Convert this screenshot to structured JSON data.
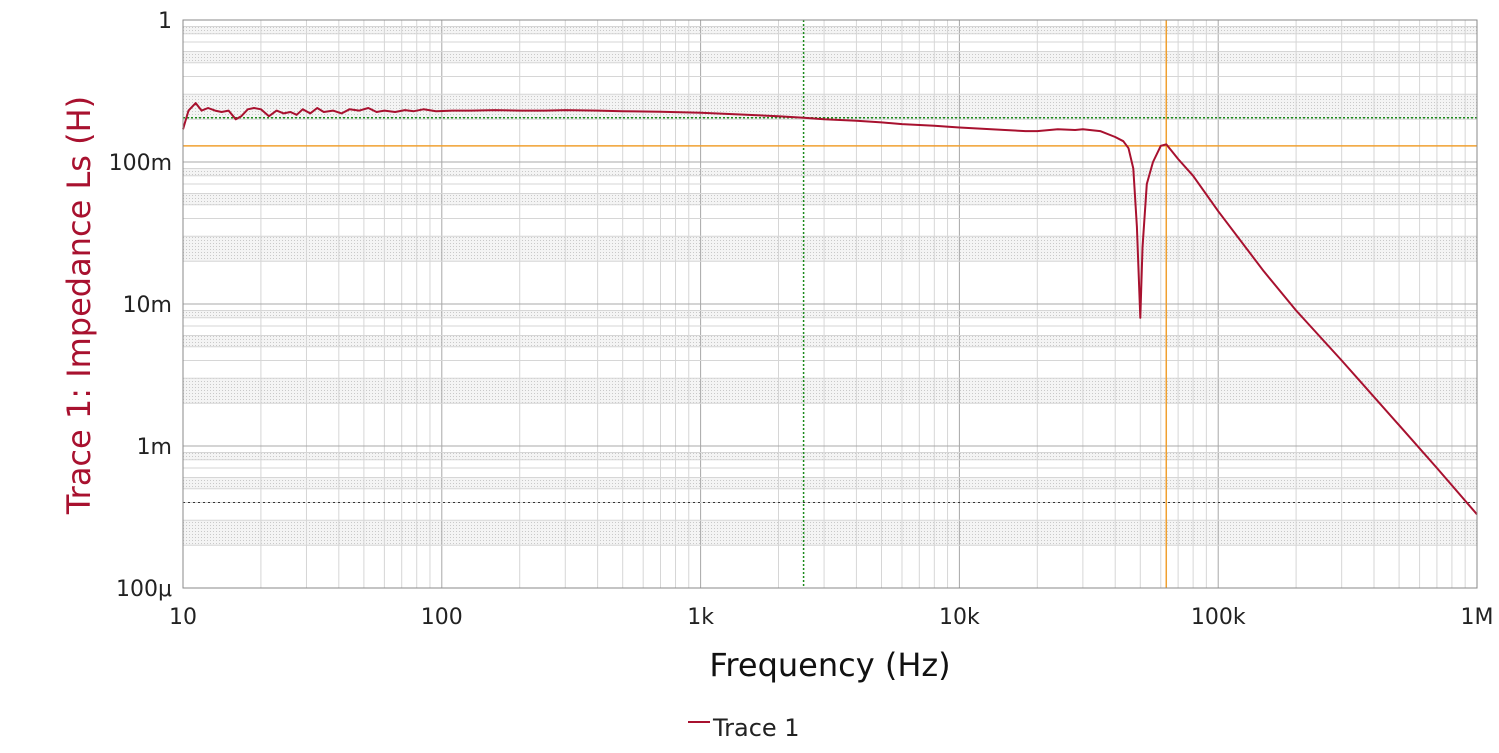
{
  "chart_data": {
    "type": "line",
    "title": "",
    "xlabel": "Frequency (Hz)",
    "ylabel": "Trace 1: Impedance Ls (H)",
    "x_scale": "log",
    "y_scale": "log",
    "xlim": [
      10,
      1000000
    ],
    "ylim": [
      0.0001,
      1
    ],
    "x_ticks": [
      {
        "value": 10,
        "label": "10"
      },
      {
        "value": 100,
        "label": "100"
      },
      {
        "value": 1000,
        "label": "1k"
      },
      {
        "value": 10000,
        "label": "10k"
      },
      {
        "value": 100000,
        "label": "100k"
      },
      {
        "value": 1000000,
        "label": "1M"
      }
    ],
    "y_ticks": [
      {
        "value": 1,
        "label": "1"
      },
      {
        "value": 0.1,
        "label": "100m"
      },
      {
        "value": 0.01,
        "label": "10m"
      },
      {
        "value": 0.001,
        "label": "1m"
      },
      {
        "value": 0.0001,
        "label": "100μ"
      }
    ],
    "grid": true,
    "legend_position": "bottom-center",
    "series": [
      {
        "name": "Trace 1",
        "color": "#a8112f",
        "x": [
          10,
          10.5,
          11.2,
          11.8,
          12.5,
          13.3,
          14.1,
          15,
          16,
          16.8,
          17.8,
          18.8,
          20,
          21.5,
          23,
          24.5,
          26,
          27.5,
          29,
          31,
          33,
          35,
          38,
          41,
          44,
          48,
          52,
          56,
          60,
          66,
          72,
          78,
          85,
          95,
          110,
          130,
          160,
          200,
          250,
          300,
          400,
          500,
          700,
          1000,
          1500,
          2000,
          2500,
          3000,
          4000,
          5000,
          6000,
          8000,
          10000,
          12000,
          15000,
          18000,
          20000,
          24000,
          28000,
          30000,
          35000,
          40000,
          43000,
          45000,
          47000,
          48500,
          50000,
          51000,
          53000,
          56000,
          60000,
          63000,
          66000,
          70000,
          80000,
          100000,
          150000,
          200000,
          300000,
          500000,
          700000,
          1000000
        ],
        "y": [
          0.17,
          0.23,
          0.26,
          0.23,
          0.24,
          0.23,
          0.225,
          0.23,
          0.2,
          0.21,
          0.235,
          0.24,
          0.235,
          0.21,
          0.23,
          0.22,
          0.225,
          0.215,
          0.235,
          0.22,
          0.24,
          0.225,
          0.23,
          0.22,
          0.235,
          0.23,
          0.24,
          0.225,
          0.23,
          0.225,
          0.232,
          0.228,
          0.235,
          0.228,
          0.23,
          0.23,
          0.232,
          0.23,
          0.23,
          0.232,
          0.23,
          0.228,
          0.226,
          0.222,
          0.215,
          0.21,
          0.205,
          0.2,
          0.195,
          0.19,
          0.185,
          0.18,
          0.175,
          0.172,
          0.168,
          0.165,
          0.165,
          0.17,
          0.168,
          0.17,
          0.165,
          0.15,
          0.14,
          0.125,
          0.09,
          0.035,
          0.008,
          0.025,
          0.07,
          0.1,
          0.13,
          0.133,
          0.12,
          0.105,
          0.08,
          0.045,
          0.017,
          0.009,
          0.004,
          0.0014,
          0.0007,
          0.00033
        ]
      }
    ],
    "cursors": [
      {
        "axis": "x",
        "value": 2500,
        "color": "#1a8a1a",
        "style": "dotted"
      },
      {
        "axis": "y",
        "value": 0.205,
        "color": "#1a8a1a",
        "style": "dotted"
      },
      {
        "axis": "x",
        "value": 63000,
        "color": "#f0a030",
        "style": "solid"
      },
      {
        "axis": "y",
        "value": 0.13,
        "color": "#f0a030",
        "style": "solid"
      }
    ],
    "reference_lines": [
      {
        "axis": "y",
        "value": 0.0004,
        "color": "#333333",
        "style": "dotted"
      }
    ]
  }
}
